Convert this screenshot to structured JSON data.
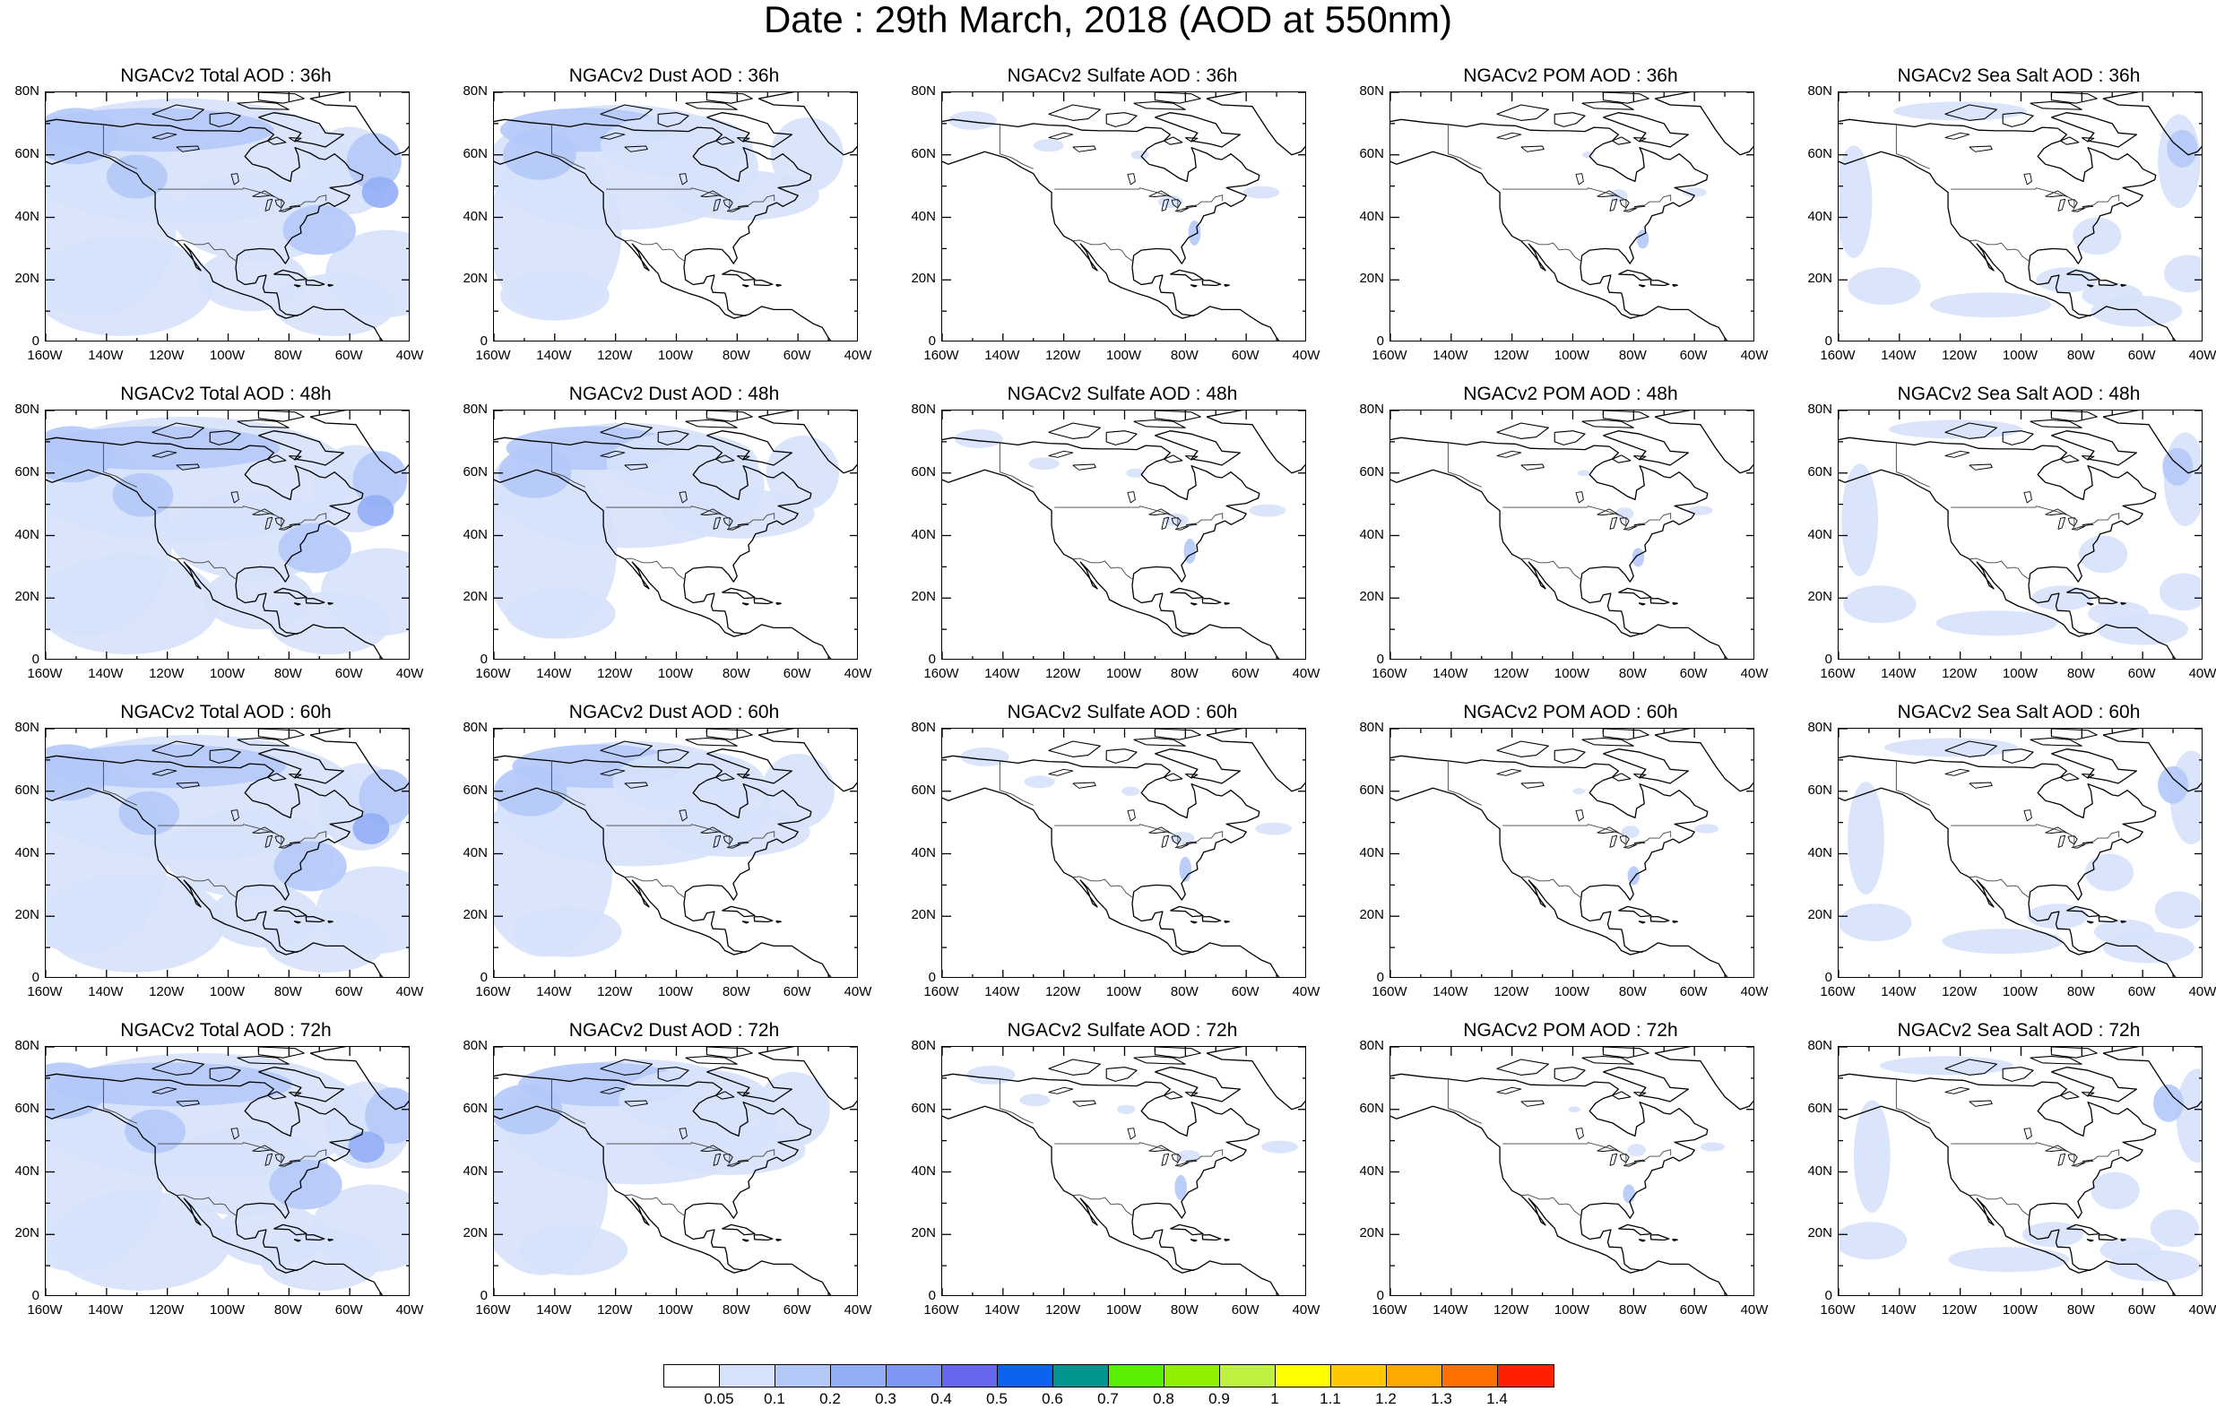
{
  "title": "Date : 29th March, 2018 (AOD at 550nm)",
  "axis": {
    "y_ticks": [
      "80N",
      "60N",
      "40N",
      "20N",
      "0"
    ],
    "x_ticks": [
      "160W",
      "140W",
      "120W",
      "100W",
      "80W",
      "60W",
      "40W"
    ],
    "lon_range": [
      -160,
      -40
    ],
    "lat_range": [
      0,
      80
    ]
  },
  "panels": [
    {
      "title": "NGACv2 Total AOD : 36h",
      "species": "total",
      "hour": 36
    },
    {
      "title": "NGACv2 Dust AOD : 36h",
      "species": "dust",
      "hour": 36
    },
    {
      "title": "NGACv2 Sulfate AOD : 36h",
      "species": "sulfate",
      "hour": 36
    },
    {
      "title": "NGACv2 POM AOD : 36h",
      "species": "pom",
      "hour": 36
    },
    {
      "title": "NGACv2 Sea Salt AOD : 36h",
      "species": "seasalt",
      "hour": 36
    },
    {
      "title": "NGACv2 Total AOD : 48h",
      "species": "total",
      "hour": 48
    },
    {
      "title": "NGACv2 Dust AOD : 48h",
      "species": "dust",
      "hour": 48
    },
    {
      "title": "NGACv2 Sulfate AOD : 48h",
      "species": "sulfate",
      "hour": 48
    },
    {
      "title": "NGACv2 POM AOD : 48h",
      "species": "pom",
      "hour": 48
    },
    {
      "title": "NGACv2 Sea Salt AOD : 48h",
      "species": "seasalt",
      "hour": 48
    },
    {
      "title": "NGACv2 Total AOD : 60h",
      "species": "total",
      "hour": 60
    },
    {
      "title": "NGACv2 Dust AOD : 60h",
      "species": "dust",
      "hour": 60
    },
    {
      "title": "NGACv2 Sulfate AOD : 60h",
      "species": "sulfate",
      "hour": 60
    },
    {
      "title": "NGACv2 POM AOD : 60h",
      "species": "pom",
      "hour": 60
    },
    {
      "title": "NGACv2 Sea Salt AOD : 60h",
      "species": "seasalt",
      "hour": 60
    },
    {
      "title": "NGACv2 Total AOD : 72h",
      "species": "total",
      "hour": 72
    },
    {
      "title": "NGACv2 Dust AOD : 72h",
      "species": "dust",
      "hour": 72
    },
    {
      "title": "NGACv2 Sulfate AOD : 72h",
      "species": "sulfate",
      "hour": 72
    },
    {
      "title": "NGACv2 POM AOD : 72h",
      "species": "pom",
      "hour": 72
    },
    {
      "title": "NGACv2 Sea Salt  AOD : 72h",
      "species": "seasalt",
      "hour": 72
    }
  ],
  "colorbar": {
    "colors": [
      "#ffffff",
      "#d6e2fb",
      "#b4c8f8",
      "#94aef6",
      "#7f97f4",
      "#6666ee",
      "#0a64f0",
      "#00958f",
      "#58f000",
      "#90f000",
      "#c0f040",
      "#ffff00",
      "#ffc800",
      "#ffa800",
      "#ff7000",
      "#ff2000"
    ],
    "labels": [
      "0.05",
      "0.1",
      "0.2",
      "0.3",
      "0.4",
      "0.5",
      "0.6",
      "0.7",
      "0.8",
      "0.9",
      "1",
      "1.1",
      "1.2",
      "1.3",
      "1.4"
    ]
  },
  "chart_data": {
    "type": "heatmap",
    "title": "Date : 29th March, 2018 (AOD at 550nm)",
    "variable": "AOD at 550nm",
    "forecast_hours": [
      36,
      48,
      60,
      72
    ],
    "species": [
      "Total",
      "Dust",
      "Sulfate",
      "POM",
      "Sea Salt"
    ],
    "x_ticks": [
      "160W",
      "140W",
      "120W",
      "100W",
      "80W",
      "60W",
      "40W"
    ],
    "y_ticks": [
      "80N",
      "60N",
      "40N",
      "20N",
      "0"
    ],
    "xlim": [
      -160,
      -40
    ],
    "ylim": [
      0,
      80
    ],
    "contour_levels": [
      0.05,
      0.1,
      0.2,
      0.3,
      0.4,
      0.5,
      0.6,
      0.7,
      0.8,
      0.9,
      1,
      1.1,
      1.2,
      1.3,
      1.4
    ],
    "grid": false
  }
}
